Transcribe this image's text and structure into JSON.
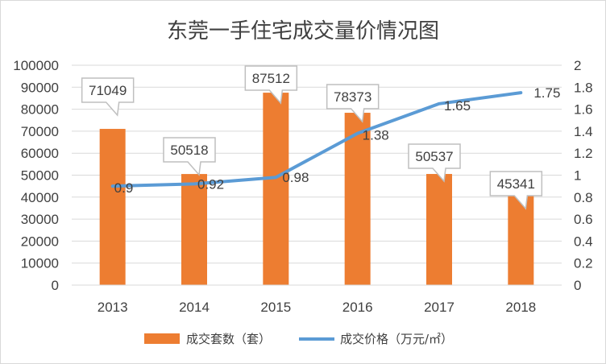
{
  "chart_data": {
    "type": "bar",
    "title": "东莞一手住宅成交量价情况图",
    "categories": [
      "2013",
      "2014",
      "2015",
      "2016",
      "2017",
      "2018"
    ],
    "series": [
      {
        "name": "成交套数（套）",
        "type": "bar",
        "axis": "left",
        "values": [
          71049,
          50518,
          87512,
          78373,
          50537,
          45341
        ],
        "labels": [
          "71049",
          "50518",
          "87512",
          "78373",
          "50537",
          "45341"
        ]
      },
      {
        "name": "成交价格（万元/㎡）",
        "type": "line",
        "axis": "right",
        "values": [
          0.9,
          0.92,
          0.98,
          1.38,
          1.65,
          1.75
        ],
        "labels": [
          "0.9",
          "0.92",
          "0.98",
          "1.38",
          "1.65",
          "1.75"
        ]
      }
    ],
    "y_left": {
      "min": 0,
      "max": 100000,
      "step": 10000,
      "ticks": [
        "0",
        "10000",
        "20000",
        "30000",
        "40000",
        "50000",
        "60000",
        "70000",
        "80000",
        "90000",
        "100000"
      ]
    },
    "y_right": {
      "min": 0,
      "max": 2,
      "step": 0.2,
      "ticks": [
        "0",
        "0.2",
        "0.4",
        "0.6",
        "0.8",
        "1",
        "1.2",
        "1.4",
        "1.6",
        "1.8",
        "2"
      ]
    },
    "grid": true,
    "legend_position": "bottom",
    "colors": {
      "bar": "#ed7d31",
      "line": "#5b9bd5",
      "grid": "#d9d9d9",
      "text": "#404040"
    }
  }
}
